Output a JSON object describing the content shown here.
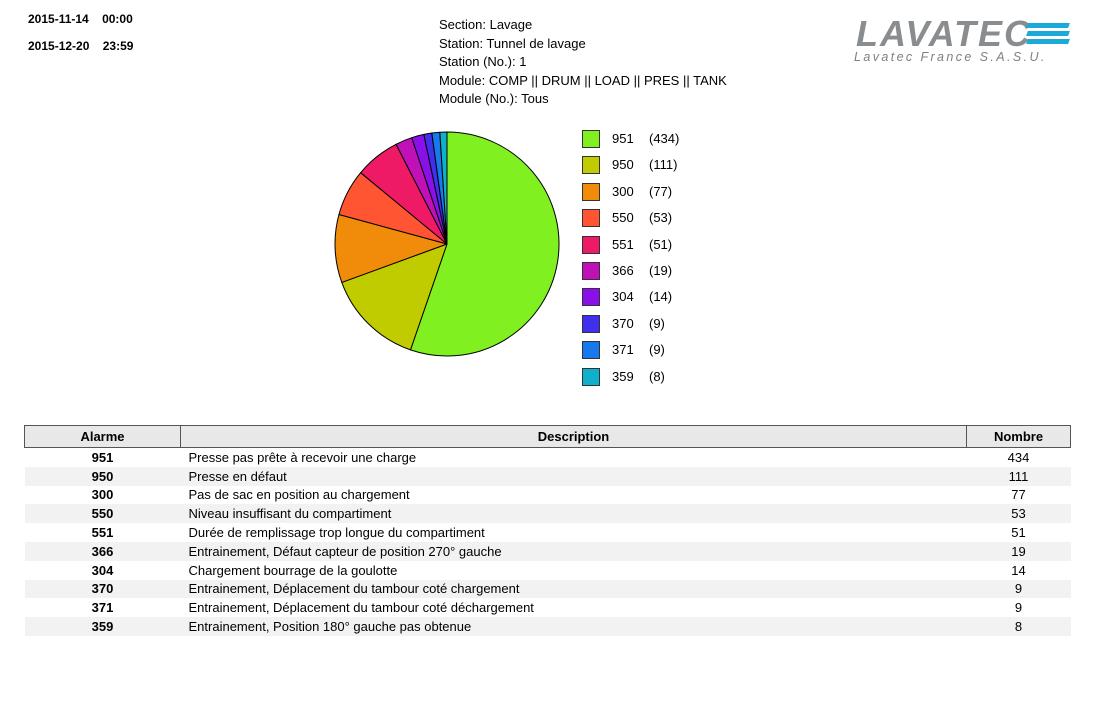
{
  "header": {
    "start_date": "2015-11-14",
    "start_time": "00:00",
    "end_date": "2015-12-20",
    "end_time": "23:59",
    "section": "Section: Lavage",
    "station": "Station: Tunnel de lavage",
    "station_no": "Station (No.): 1",
    "module": "Module: COMP || DRUM || LOAD || PRES || TANK",
    "module_no": "Module (No.): Tous"
  },
  "logo": {
    "word": "LAVATEC",
    "subtitle": "Lavatec France S.A.S.U.",
    "color": "#8a8d8f",
    "accent": "#1aa9d8"
  },
  "chart_data": {
    "type": "pie",
    "title": "",
    "categories": [
      "951",
      "950",
      "300",
      "550",
      "551",
      "366",
      "304",
      "370",
      "371",
      "359"
    ],
    "values": [
      434,
      111,
      77,
      53,
      51,
      19,
      14,
      9,
      9,
      8
    ],
    "labels": [
      "(434)",
      "(111)",
      "(77)",
      "(53)",
      "(51)",
      "(19)",
      "(14)",
      "(9)",
      "(9)",
      "(8)"
    ],
    "colors": [
      "#80f020",
      "#c0cc00",
      "#f08c0a",
      "#ff5533",
      "#ee1a66",
      "#c010b8",
      "#8a10e8",
      "#4030ee",
      "#1878ee",
      "#10b0cc"
    ],
    "legend_position": "right"
  },
  "table": {
    "headers": [
      "Alarme",
      "Description",
      "Nombre"
    ],
    "rows": [
      {
        "code": "951",
        "desc": "Presse pas prête à recevoir une charge",
        "count": "434"
      },
      {
        "code": "950",
        "desc": "Presse en défaut",
        "count": "111"
      },
      {
        "code": "300",
        "desc": "Pas de sac en position au chargement",
        "count": "77"
      },
      {
        "code": "550",
        "desc": "Niveau insuffisant du compartiment",
        "count": "53"
      },
      {
        "code": "551",
        "desc": "Durée de remplissage trop longue du compartiment",
        "count": "51"
      },
      {
        "code": "366",
        "desc": "Entrainement, Défaut capteur de position 270° gauche",
        "count": "19"
      },
      {
        "code": "304",
        "desc": "Chargement bourrage de la goulotte",
        "count": "14"
      },
      {
        "code": "370",
        "desc": "Entrainement, Déplacement du tambour coté chargement",
        "count": "9"
      },
      {
        "code": "371",
        "desc": "Entrainement, Déplacement du tambour coté déchargement",
        "count": "9"
      },
      {
        "code": "359",
        "desc": "Entrainement, Position 180° gauche pas obtenue",
        "count": "8"
      }
    ]
  }
}
